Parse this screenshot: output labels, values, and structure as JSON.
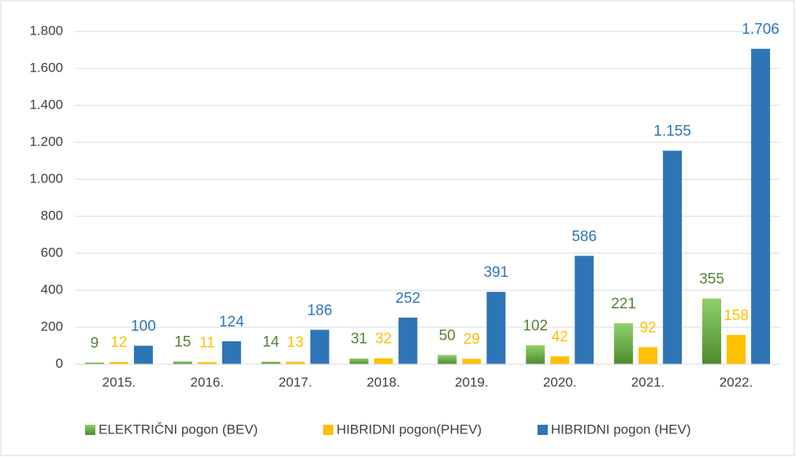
{
  "chart_data": {
    "type": "bar",
    "categories": [
      "2015.",
      "2016.",
      "2017.",
      "2018.",
      "2019.",
      "2020.",
      "2021.",
      "2022."
    ],
    "series": [
      {
        "name": "ELEKTRIČNI pogon (BEV)",
        "color": "#70ad47",
        "label_color": "#548235",
        "values": [
          9,
          15,
          14,
          31,
          50,
          102,
          221,
          355
        ],
        "value_labels": [
          "9",
          "15",
          "14",
          "31",
          "50",
          "102",
          "221",
          "355"
        ]
      },
      {
        "name": "HIBRIDNI pogon(PHEV)",
        "color": "#ffc000",
        "label_color": "#ffc000",
        "values": [
          12,
          11,
          13,
          32,
          29,
          42,
          92,
          158
        ],
        "value_labels": [
          "12",
          "11",
          "13",
          "32",
          "29",
          "42",
          "92",
          "158"
        ]
      },
      {
        "name": "HIBRIDNI pogon (HEV)",
        "color": "#2e75b6",
        "label_color": "#2e75b6",
        "values": [
          100,
          124,
          186,
          252,
          391,
          586,
          1155,
          1706
        ],
        "value_labels": [
          "100",
          "124",
          "186",
          "252",
          "391",
          "586",
          "1.155",
          "1.706"
        ]
      }
    ],
    "ylim": [
      0,
      1800
    ],
    "yticks": [
      0,
      200,
      400,
      600,
      800,
      {
        "value": 1000,
        "label": "1.000"
      },
      {
        "value": 1200,
        "label": "1.200"
      },
      {
        "value": 1400,
        "label": "1.400"
      },
      {
        "value": 1600,
        "label": "1.600"
      },
      {
        "value": 1800,
        "label": "1.800"
      }
    ],
    "grid": true,
    "legend": "bottom"
  }
}
